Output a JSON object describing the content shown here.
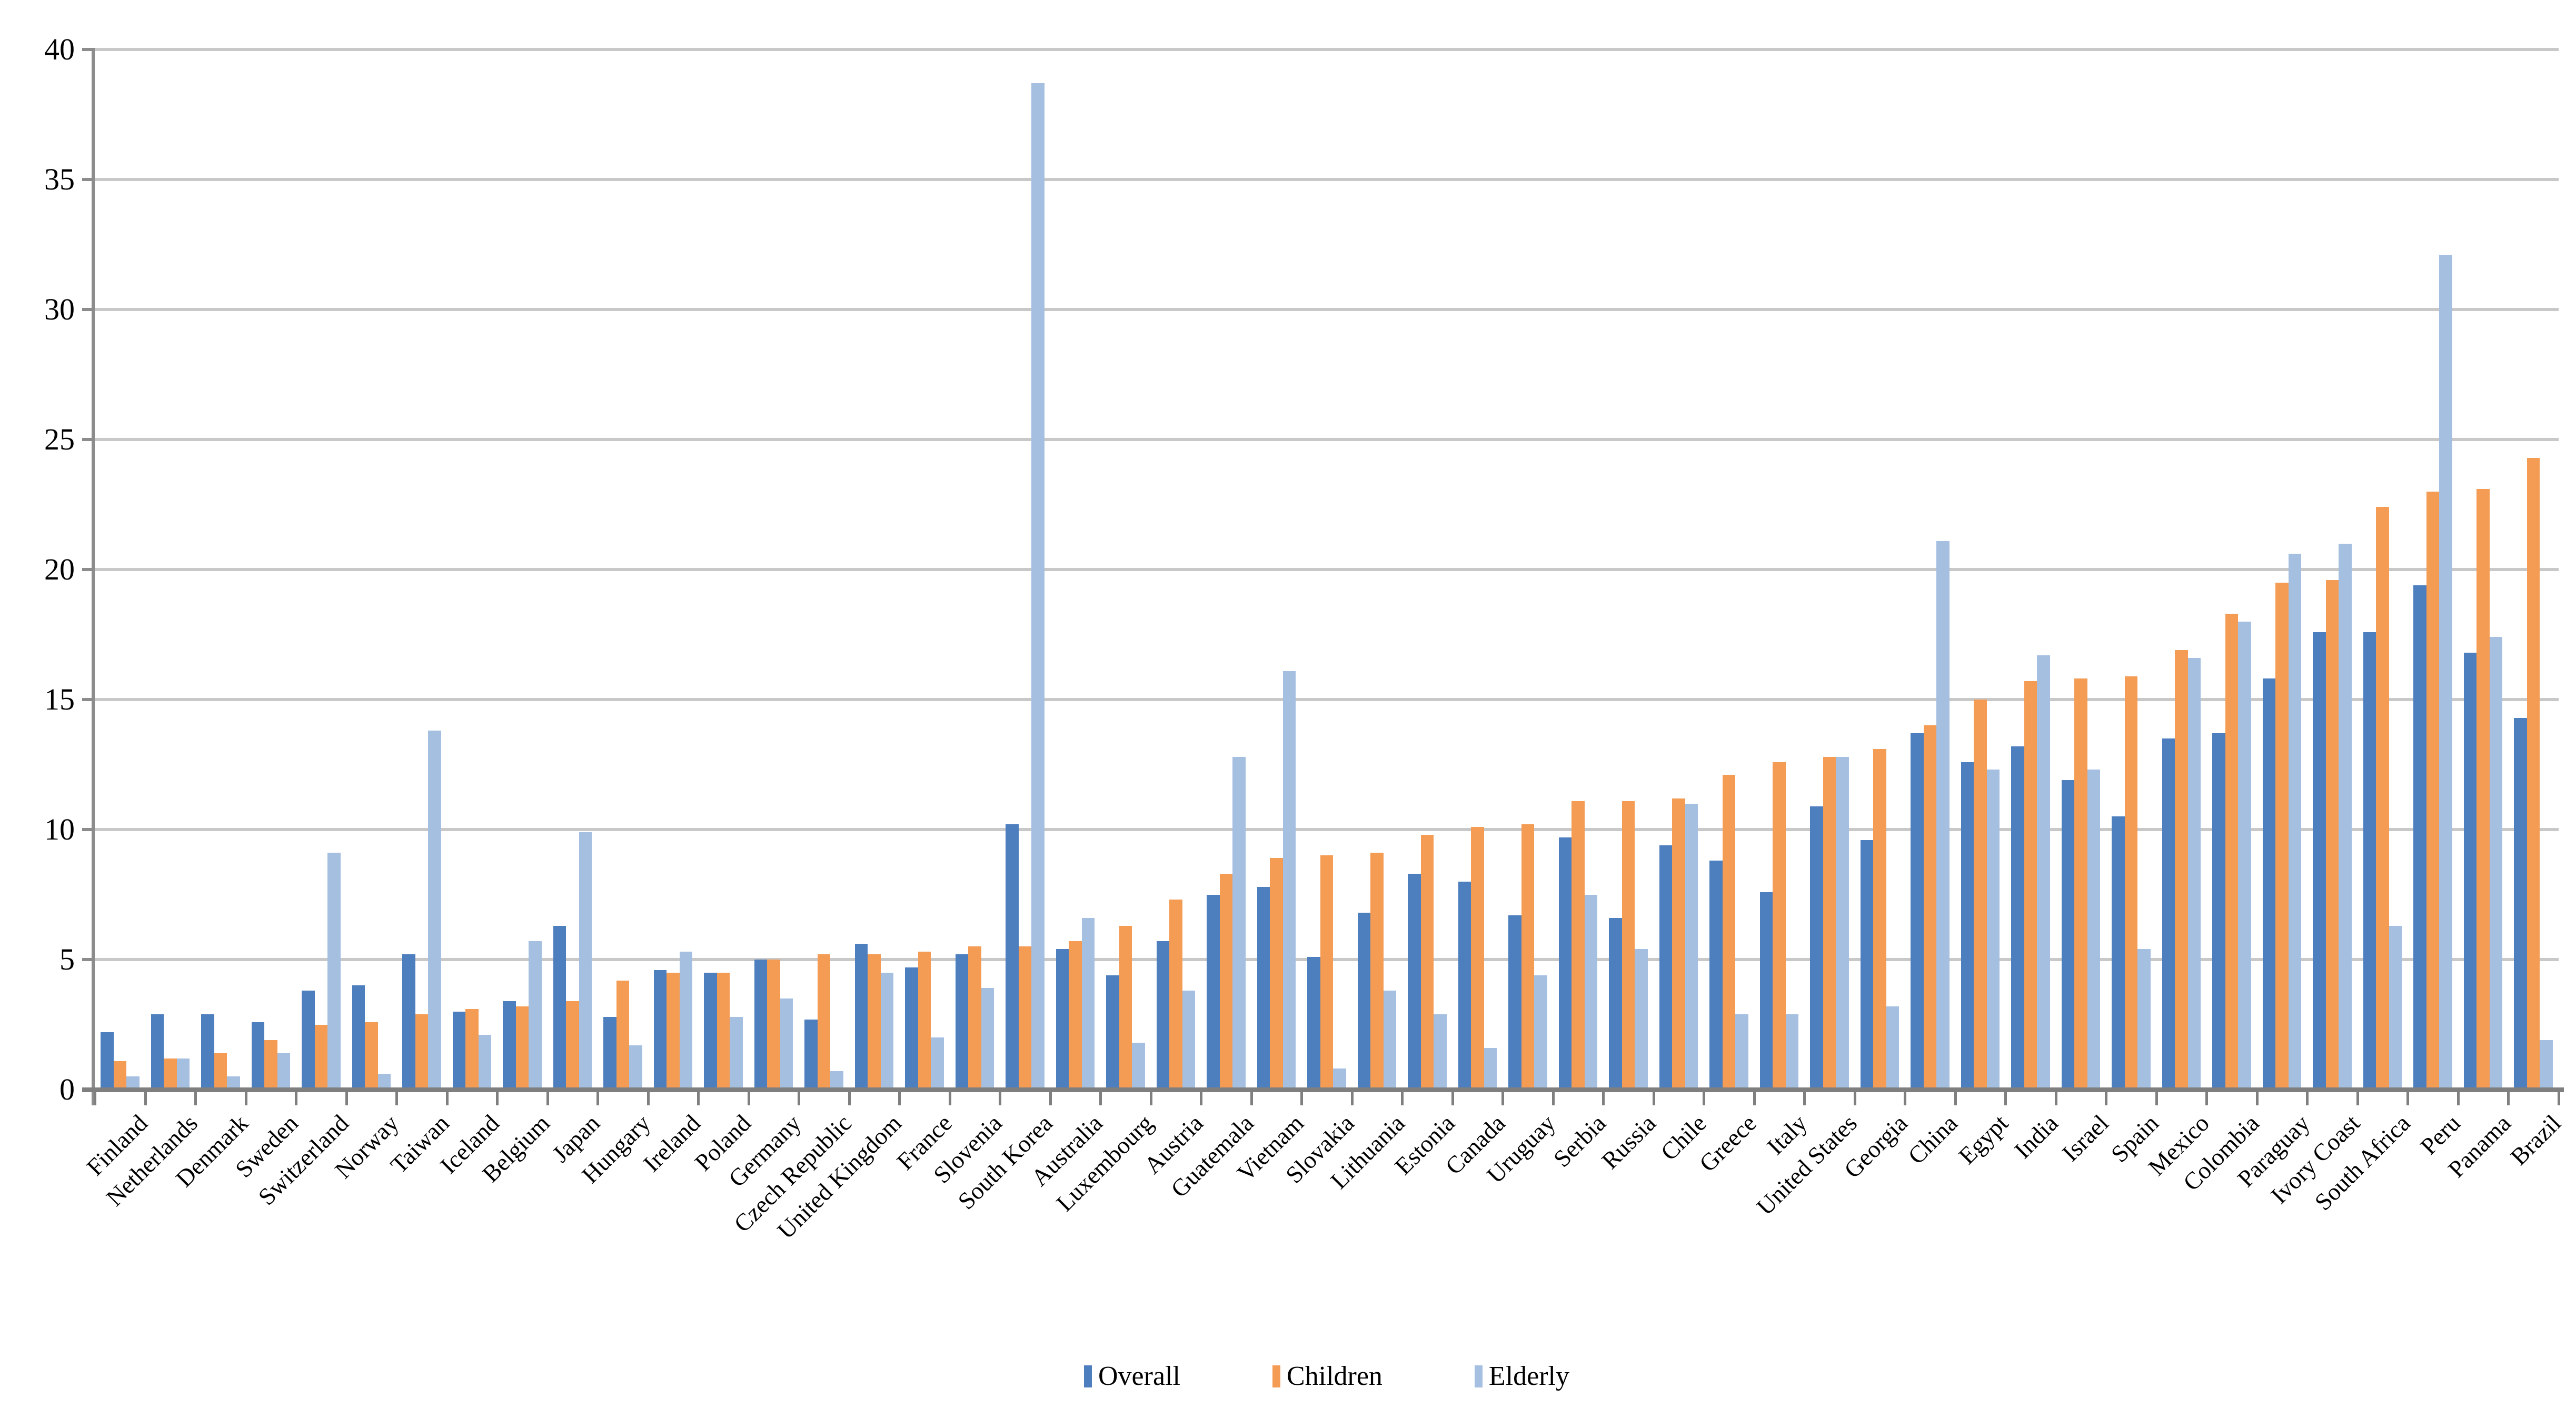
{
  "colors": {
    "overall": "#4D7EBE",
    "children": "#F49B54",
    "elderly": "#A5BFE1",
    "gridline": "#C8C8C8",
    "axis": "#7F7F7F",
    "axis_vertical": "#8C8C8C",
    "text": "#000000",
    "background": "#FFFFFF"
  },
  "chart_data": {
    "type": "bar",
    "title": "",
    "xlabel": "",
    "ylabel": "",
    "ylim": [
      0,
      40
    ],
    "ytick_step": 5,
    "ytick_labels": [
      "0",
      "5",
      "10",
      "15",
      "20",
      "25",
      "30",
      "35",
      "40"
    ],
    "grid": true,
    "legend_position": "bottom",
    "categories": [
      "Finland",
      "Netherlands",
      "Denmark",
      "Sweden",
      "Switzerland",
      "Norway",
      "Taiwan",
      "Iceland",
      "Belgium",
      "Japan",
      "Hungary",
      "Ireland",
      "Poland",
      "Germany",
      "Czech Republic",
      "United Kingdom",
      "France",
      "Slovenia",
      "South Korea",
      "Australia",
      "Luxembourg",
      "Austria",
      "Guatemala",
      "Vietnam",
      "Slovakia",
      "Lithuania",
      "Estonia",
      "Canada",
      "Uruguay",
      "Serbia",
      "Russia",
      "Chile",
      "Greece",
      "Italy",
      "United States",
      "Georgia",
      "China",
      "Egypt",
      "India",
      "Israel",
      "Spain",
      "Mexico",
      "Colombia",
      "Paraguay",
      "Ivory Coast",
      "South Africa",
      "Peru",
      "Panama",
      "Brazil"
    ],
    "series": [
      {
        "name": "Overall",
        "color_key": "overall",
        "values": [
          2.2,
          2.9,
          2.9,
          2.6,
          3.8,
          4.0,
          5.2,
          3.0,
          3.4,
          6.3,
          2.8,
          4.6,
          4.5,
          5.0,
          2.7,
          5.6,
          4.7,
          5.2,
          10.2,
          5.4,
          4.4,
          5.7,
          7.5,
          7.8,
          5.1,
          6.8,
          8.3,
          8.0,
          6.7,
          9.7,
          6.6,
          9.4,
          8.8,
          7.6,
          10.9,
          9.6,
          13.7,
          12.6,
          13.2,
          11.9,
          10.5,
          13.5,
          13.7,
          15.8,
          17.6,
          17.6,
          19.4,
          16.8,
          14.3
        ]
      },
      {
        "name": "Children",
        "color_key": "children",
        "values": [
          1.1,
          1.2,
          1.4,
          1.9,
          2.5,
          2.6,
          2.9,
          3.1,
          3.2,
          3.4,
          4.2,
          4.5,
          4.5,
          5.0,
          5.2,
          5.2,
          5.3,
          5.5,
          5.5,
          5.7,
          6.3,
          7.3,
          8.3,
          8.9,
          9.0,
          9.1,
          9.8,
          10.1,
          10.2,
          11.1,
          11.1,
          11.2,
          12.1,
          12.6,
          12.8,
          13.1,
          14.0,
          15.0,
          15.7,
          15.8,
          15.9,
          16.9,
          18.3,
          19.5,
          19.6,
          22.4,
          23.0,
          23.1,
          24.3
        ]
      },
      {
        "name": "Elderly",
        "color_key": "elderly",
        "values": [
          0.5,
          1.2,
          0.5,
          1.4,
          9.1,
          0.6,
          13.8,
          2.1,
          5.7,
          9.9,
          1.7,
          5.3,
          2.8,
          3.5,
          0.7,
          4.5,
          2.0,
          3.9,
          38.7,
          6.6,
          1.8,
          3.8,
          12.8,
          16.1,
          0.8,
          3.8,
          2.9,
          1.6,
          4.4,
          7.5,
          5.4,
          11.0,
          2.9,
          2.9,
          12.8,
          3.2,
          21.1,
          12.3,
          16.7,
          12.3,
          5.4,
          16.6,
          18.0,
          20.6,
          21.0,
          6.3,
          32.1,
          17.4,
          1.9
        ]
      }
    ]
  }
}
